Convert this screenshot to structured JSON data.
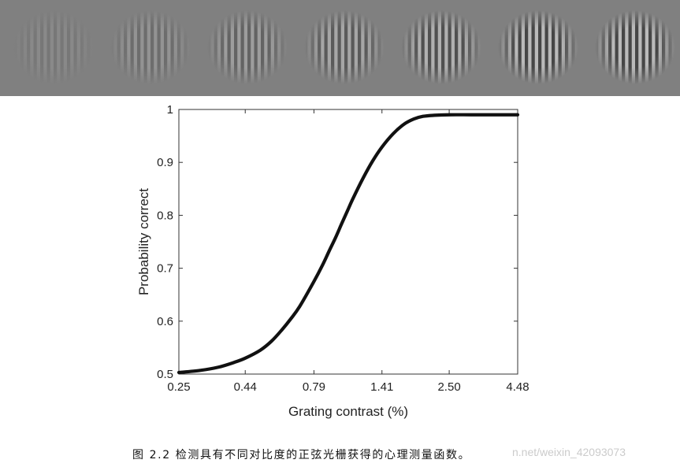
{
  "stimulus": {
    "count": 7,
    "background": "#808080",
    "contrast_levels": [
      0.25,
      0.44,
      0.79,
      1.41,
      2.5,
      4.48,
      4.48
    ]
  },
  "chart_data": {
    "type": "line",
    "title": "",
    "xlabel": "Grating contrast (%)",
    "ylabel": "Probability correct",
    "x_scale": "log",
    "x_ticks": [
      0.25,
      0.44,
      0.79,
      1.41,
      2.5,
      4.48
    ],
    "x_tick_labels": [
      "0.25",
      "0.44",
      "0.79",
      "1.41",
      "2.50",
      "4.48"
    ],
    "y_ticks": [
      0.5,
      0.6,
      0.7,
      0.8,
      0.9,
      1
    ],
    "y_tick_labels": [
      "0.5",
      "0.6",
      "0.7",
      "0.8",
      "0.9",
      "1"
    ],
    "xlim": [
      0.25,
      4.48
    ],
    "ylim": [
      0.5,
      1.0
    ],
    "grid": false,
    "series": [
      {
        "color": "#111111",
        "x": [
          0.25,
          0.3,
          0.35,
          0.4,
          0.44,
          0.5,
          0.55,
          0.6,
          0.65,
          0.7,
          0.79,
          0.85,
          0.9,
          0.95,
          1.0,
          1.05,
          1.1,
          1.2,
          1.3,
          1.41,
          1.55,
          1.7,
          1.85,
          2.0,
          2.2,
          2.5,
          3.0,
          3.5,
          4.0,
          4.48
        ],
        "y": [
          0.503,
          0.507,
          0.513,
          0.522,
          0.53,
          0.545,
          0.562,
          0.583,
          0.605,
          0.628,
          0.675,
          0.706,
          0.733,
          0.758,
          0.784,
          0.808,
          0.831,
          0.87,
          0.902,
          0.929,
          0.954,
          0.972,
          0.982,
          0.987,
          0.989,
          0.99,
          0.99,
          0.99,
          0.99,
          0.99
        ]
      }
    ]
  },
  "caption": {
    "text": "图 2.2 检测具有不同对比度的正弦光栅获得的心理测量函数。"
  },
  "watermark": {
    "text": "n.net/weixin_42093073"
  }
}
